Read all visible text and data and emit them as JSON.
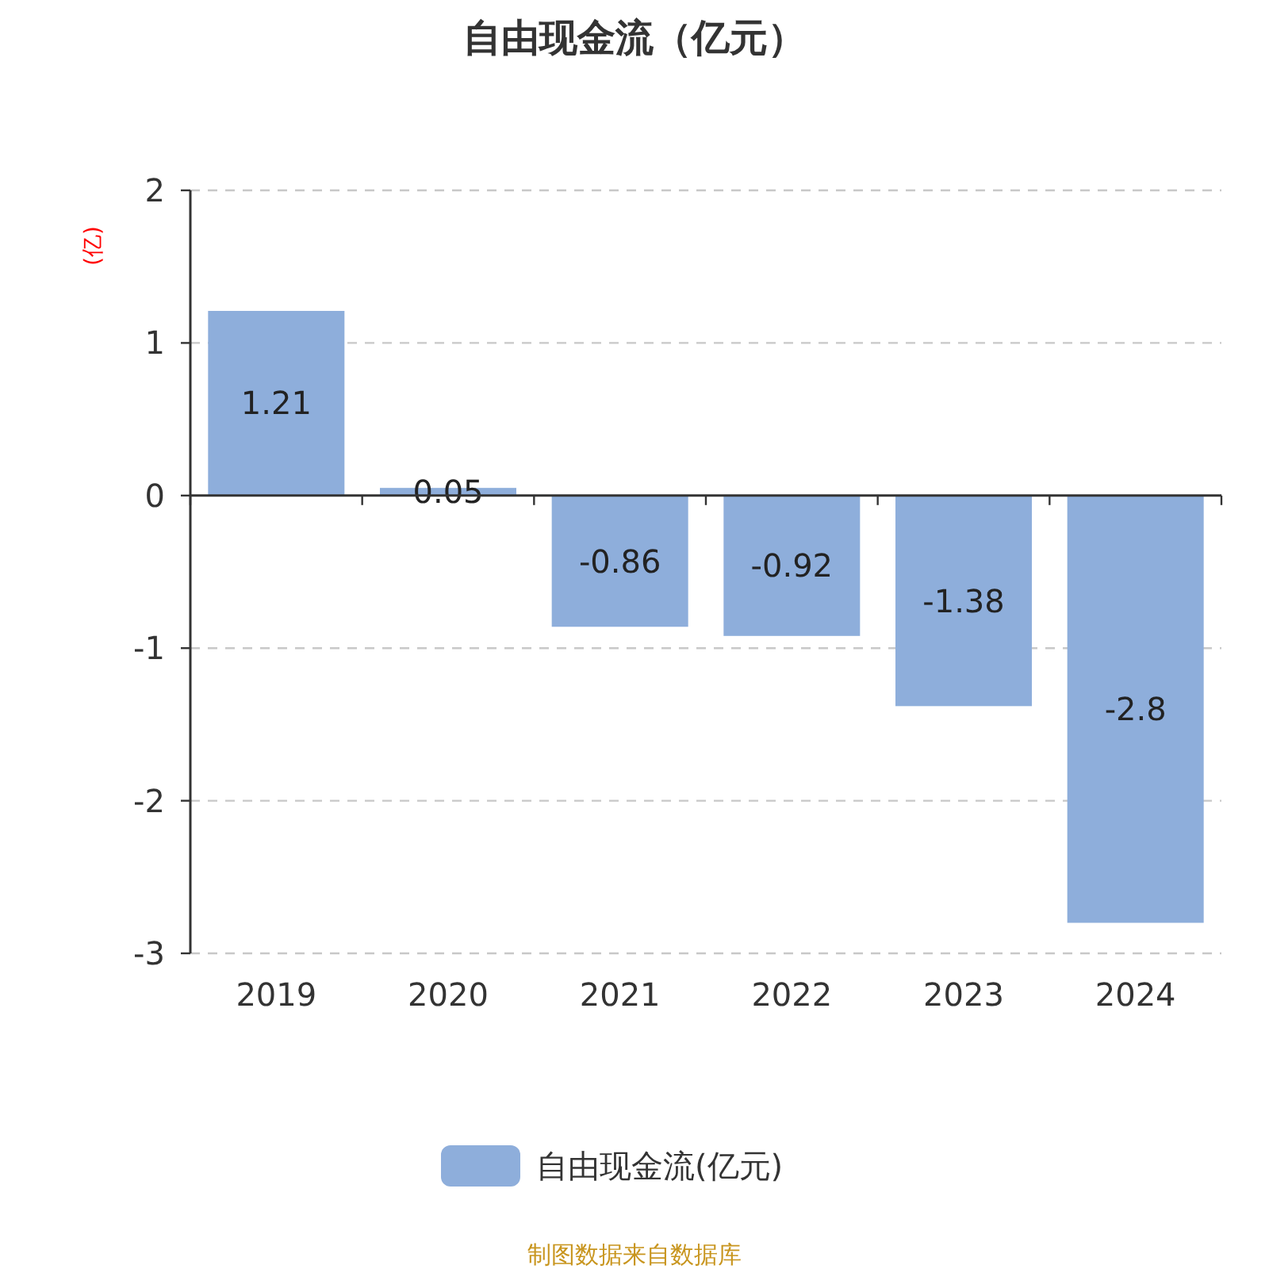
{
  "chart_data": {
    "type": "bar",
    "title": "自由现金流（亿元）",
    "ylabel": "(亿)",
    "categories": [
      "2019",
      "2020",
      "2021",
      "2022",
      "2023",
      "2024"
    ],
    "series": [
      {
        "name": "自由现金流(亿元)",
        "color": "#8eaedb",
        "values": [
          1.21,
          0.05,
          -0.86,
          -0.92,
          -1.38,
          -2.8
        ]
      }
    ],
    "ylim": [
      -3,
      2
    ],
    "yticks": [
      -3,
      -2,
      -1,
      0,
      1,
      2
    ],
    "grid": "y",
    "legend": "bottom",
    "data_labels": true,
    "annotations": [
      "制图数据来自数据库"
    ]
  }
}
